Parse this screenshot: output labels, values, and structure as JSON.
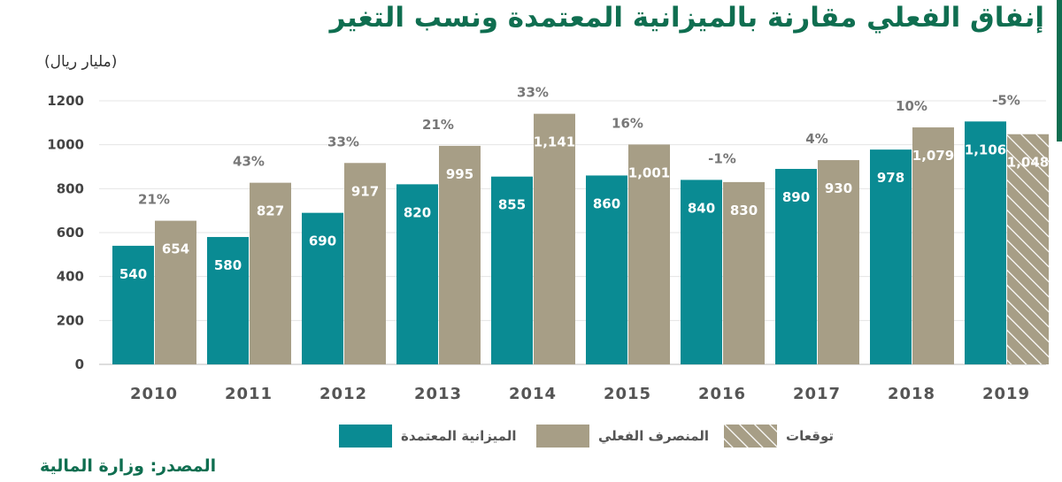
{
  "header": {
    "title": "إنفاق الفعلي مقارنة بالميزانية المعتمدة ونسب التغير",
    "unit": "(مليار ريال)"
  },
  "footer": {
    "source": "المصدر: وزارة المالية"
  },
  "legend": {
    "budget": "الميزانية المعتمدة",
    "actual": "المنصرف الفعلي",
    "forecast": "توقعات"
  },
  "colors": {
    "budget": "#0a8b93",
    "actual": "#a79e86",
    "title": "#0f6e50"
  },
  "chart_data": {
    "type": "bar",
    "categories": [
      "2010",
      "2011",
      "2012",
      "2013",
      "2014",
      "2015",
      "2016",
      "2017",
      "2018",
      "2019"
    ],
    "series": [
      {
        "name": "الميزانية المعتمدة",
        "values": [
          540,
          580,
          690,
          820,
          855,
          860,
          840,
          890,
          978,
          1106
        ],
        "labels": [
          "540",
          "580",
          "690",
          "820",
          "855",
          "860",
          "840",
          "890",
          "978",
          "1,106"
        ]
      },
      {
        "name": "المنصرف الفعلي",
        "values": [
          654,
          827,
          917,
          995,
          1141,
          1001,
          830,
          930,
          1079,
          1048
        ],
        "labels": [
          "654",
          "827",
          "917",
          "995",
          "1,141",
          "1,001",
          "830",
          "930",
          "1,079",
          "1,048"
        ]
      }
    ],
    "changes": [
      "21%",
      "43%",
      "33%",
      "21%",
      "33%",
      "16%",
      "-1%",
      "4%",
      "10%",
      "-5%"
    ],
    "forecast_index": 9,
    "ylim": [
      0,
      1200
    ],
    "yticks": [
      0,
      200,
      400,
      600,
      800,
      1000,
      1200
    ],
    "ytick_labels": [
      "0",
      "200",
      "400",
      "600",
      "800",
      "1000",
      "1200"
    ],
    "grid": true
  }
}
